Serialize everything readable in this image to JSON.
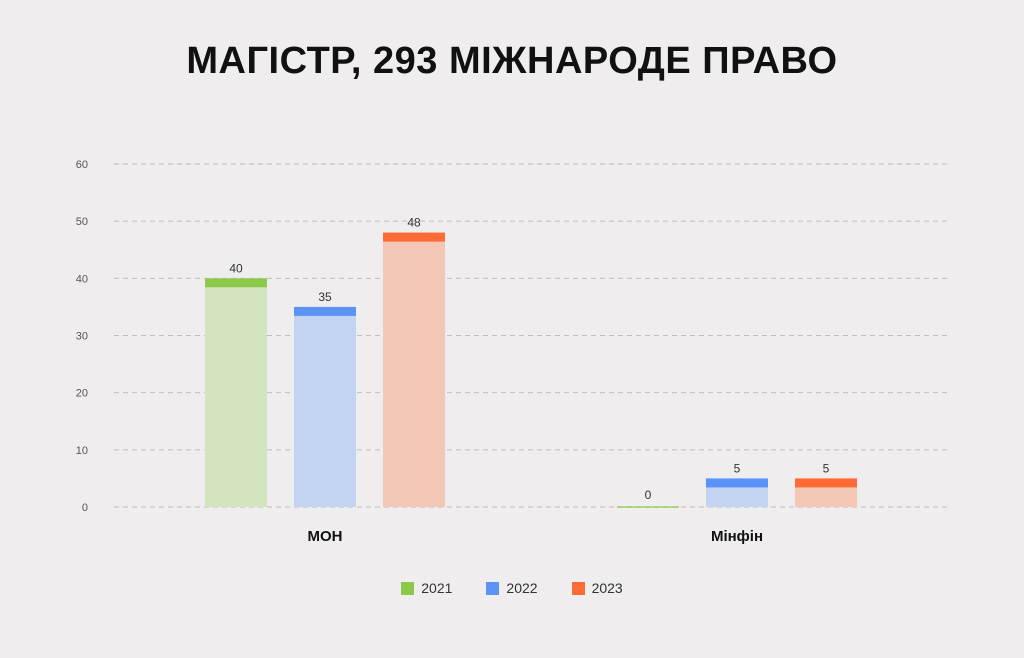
{
  "chart_data": {
    "type": "bar",
    "title": "МАГІСТР, 293 МІЖНАРОДЕ ПРАВО",
    "categories": [
      "МОН",
      "Мінфін"
    ],
    "series": [
      {
        "name": "2021",
        "values": [
          40,
          0
        ],
        "color": "#8cc84b",
        "fill": "#d3e5be"
      },
      {
        "name": "2022",
        "values": [
          35,
          5
        ],
        "color": "#5b93f7",
        "fill": "#c3d4f2"
      },
      {
        "name": "2023",
        "values": [
          48,
          5
        ],
        "color": "#ff6b35",
        "fill": "#f3c6b5"
      }
    ],
    "data_labels": [
      [
        "40",
        "0"
      ],
      [
        "35",
        "5"
      ],
      [
        "48",
        "5"
      ]
    ],
    "ylim": [
      0,
      60
    ],
    "yticks": [
      "0",
      "10",
      "20",
      "30",
      "40",
      "50",
      "60"
    ],
    "xlabel": "",
    "ylabel": "",
    "grid": true,
    "legend_position": "bottom-center"
  }
}
